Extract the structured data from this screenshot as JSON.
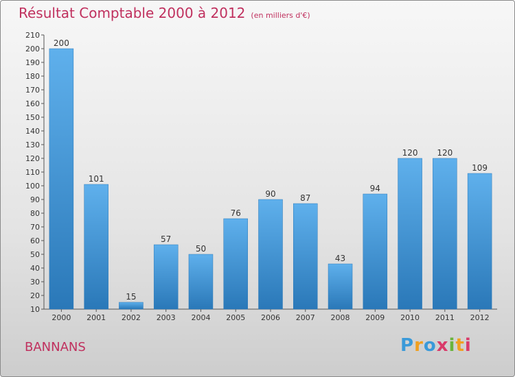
{
  "title": "Résultat Comptable 2000 à 2012",
  "subtitle": "(en milliers d'€)",
  "commune": "BANNANS",
  "logo": {
    "text": "Proxiti"
  },
  "colors": {
    "title": "#c0305e",
    "bar_top": "#5fb0ec",
    "bar_bottom": "#2a78b8"
  },
  "chart_data": {
    "type": "bar",
    "title": "Résultat Comptable 2000 à 2012",
    "subtitle": "(en milliers d'€)",
    "xlabel": "",
    "ylabel": "",
    "categories": [
      "2000",
      "2001",
      "2002",
      "2003",
      "2004",
      "2005",
      "2006",
      "2007",
      "2008",
      "2009",
      "2010",
      "2011",
      "2012"
    ],
    "values": [
      200,
      101,
      15,
      57,
      50,
      76,
      90,
      87,
      43,
      94,
      120,
      120,
      109
    ],
    "ylim": [
      10,
      210
    ],
    "yticks": [
      10,
      20,
      30,
      40,
      50,
      60,
      70,
      80,
      90,
      100,
      110,
      120,
      130,
      140,
      150,
      160,
      170,
      180,
      190,
      200,
      210
    ],
    "grid": false,
    "legend": "none"
  }
}
